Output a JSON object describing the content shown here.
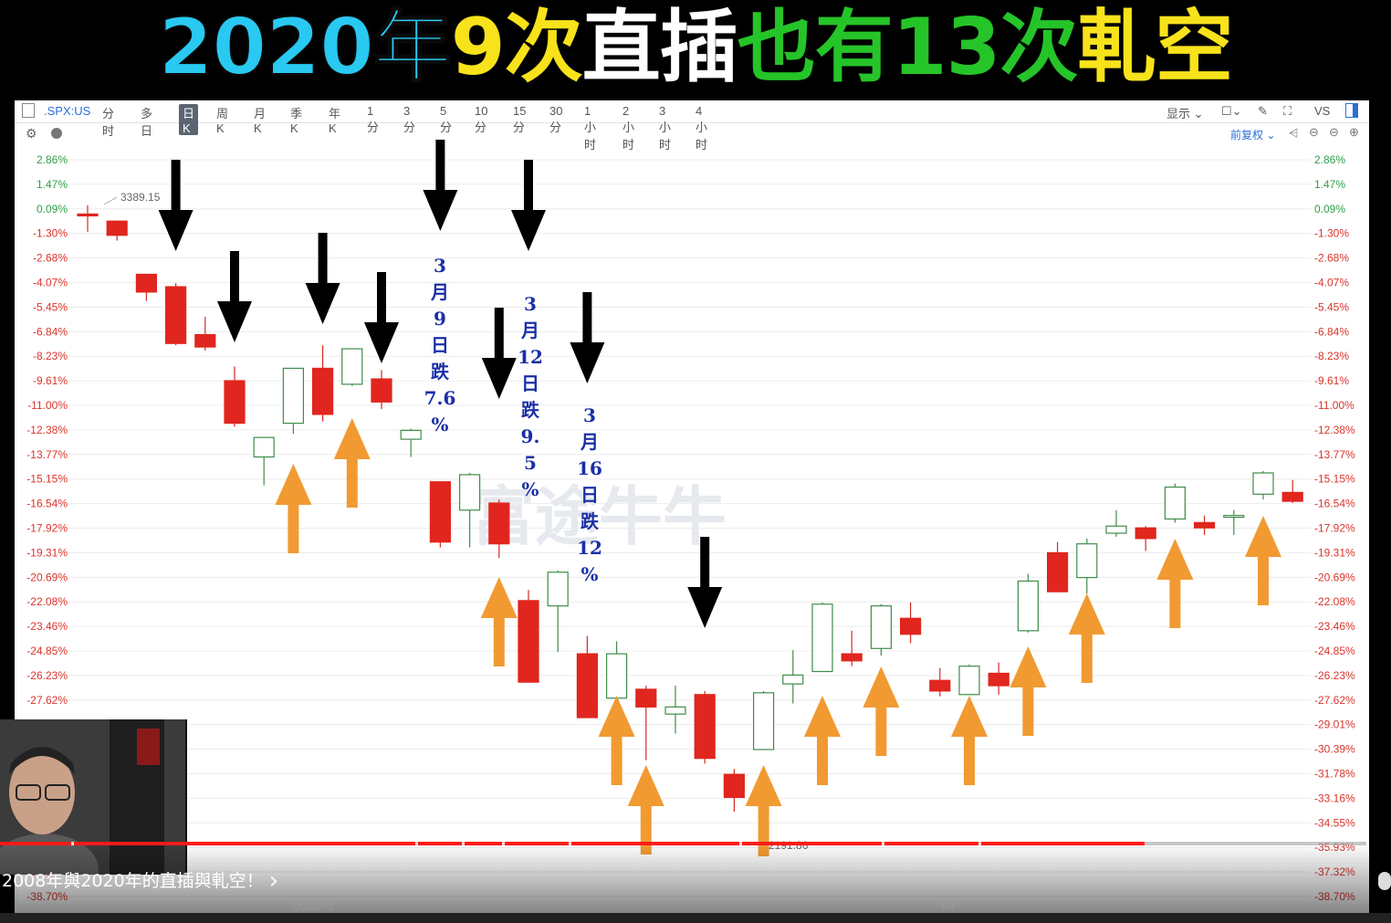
{
  "banner": {
    "part1": "2020年",
    "part2": "9次",
    "part3": "直插",
    "part4": "也有13次",
    "part5": "軋空",
    "colors": {
      "part1": "#29c9f2",
      "part2": "#f7e21b",
      "part3": "#ffffff",
      "part4": "#25c428",
      "part5": "#f7e21b"
    }
  },
  "toolbar": {
    "symbol": ".SPX:US",
    "periods": [
      "分时",
      "多日",
      "日K",
      "周K",
      "月K",
      "季K",
      "年K",
      "1分",
      "3分",
      "5分",
      "10分",
      "15分",
      "30分",
      "1小时",
      "2小时",
      "3小时",
      "4小时"
    ],
    "active_period": "日K",
    "display_label": "显示",
    "vs_label": "VS",
    "adjust_label": "前复权"
  },
  "watermark": "富途牛牛",
  "annotations": {
    "mar9": [
      "3",
      "月",
      "9",
      "日",
      "跌",
      "7.6",
      "%"
    ],
    "mar12": [
      "3",
      "月",
      "12",
      "日",
      "跌",
      "9.",
      "5",
      "%"
    ],
    "mar16": [
      "3",
      "月",
      "16",
      "日",
      "跌",
      "12",
      "%"
    ]
  },
  "chart_data": {
    "type": "candlestick",
    "title": "",
    "y_axis_labels": [
      "2.86%",
      "1.47%",
      "0.09%",
      "-1.30%",
      "-2.68%",
      "-4.07%",
      "-5.45%",
      "-6.84%",
      "-8.23%",
      "-9.61%",
      "-11.00%",
      "-12.38%",
      "-13.77%",
      "-15.15%",
      "-16.54%",
      "-17.92%",
      "-19.31%",
      "-20.69%",
      "-22.08%",
      "-23.46%",
      "-24.85%",
      "-26.23%",
      "-27.62%",
      "-29.01%",
      "-30.39%",
      "-31.78%",
      "-33.16%",
      "-34.55%",
      "-35.93%",
      "-37.32%",
      "-38.70%"
    ],
    "x_axis_labels": [
      "2020/03",
      "04"
    ],
    "high_label": "3389.15",
    "low_label": "2191.86",
    "ylim": [
      -38.7,
      2.86
    ],
    "candles_pct": [
      {
        "o": -0.2,
        "h": 0.3,
        "l": -1.2,
        "c": -0.2,
        "dir": "down"
      },
      {
        "o": -0.6,
        "h": -0.6,
        "l": -1.7,
        "c": -1.4,
        "dir": "down"
      },
      {
        "o": -3.6,
        "h": -3.6,
        "l": -5.1,
        "c": -4.6,
        "dir": "down"
      },
      {
        "o": -4.3,
        "h": -4.1,
        "l": -7.6,
        "c": -7.5,
        "dir": "down"
      },
      {
        "o": -7.0,
        "h": -6.0,
        "l": -7.9,
        "c": -7.7,
        "dir": "down"
      },
      {
        "o": -9.6,
        "h": -8.8,
        "l": -12.2,
        "c": -12.0,
        "dir": "down"
      },
      {
        "o": -13.9,
        "h": -12.8,
        "l": -15.5,
        "c": -12.8,
        "dir": "up"
      },
      {
        "o": -12.0,
        "h": -8.9,
        "l": -12.6,
        "c": -8.9,
        "dir": "up"
      },
      {
        "o": -8.9,
        "h": -7.6,
        "l": -11.9,
        "c": -11.5,
        "dir": "down"
      },
      {
        "o": -9.8,
        "h": -7.8,
        "l": -9.9,
        "c": -7.8,
        "dir": "up"
      },
      {
        "o": -9.5,
        "h": -9.0,
        "l": -11.2,
        "c": -10.8,
        "dir": "down"
      },
      {
        "o": -12.9,
        "h": -12.3,
        "l": -13.9,
        "c": -12.4,
        "dir": "up"
      },
      {
        "o": -15.3,
        "h": -15.3,
        "l": -19.0,
        "c": -18.7,
        "dir": "down"
      },
      {
        "o": -16.9,
        "h": -14.8,
        "l": -19.0,
        "c": -14.9,
        "dir": "up"
      },
      {
        "o": -16.5,
        "h": -16.3,
        "l": -19.6,
        "c": -18.8,
        "dir": "down"
      },
      {
        "o": -22.0,
        "h": -21.4,
        "l": -26.6,
        "c": -26.6,
        "dir": "down"
      },
      {
        "o": -22.3,
        "h": -20.3,
        "l": -24.9,
        "c": -20.4,
        "dir": "up"
      },
      {
        "o": -25.0,
        "h": -24.0,
        "l": -28.6,
        "c": -28.6,
        "dir": "down"
      },
      {
        "o": -27.5,
        "h": -24.3,
        "l": -29.0,
        "c": -25.0,
        "dir": "up"
      },
      {
        "o": -27.0,
        "h": -26.8,
        "l": -31.0,
        "c": -28.0,
        "dir": "down"
      },
      {
        "o": -28.0,
        "h": -26.8,
        "l": -29.5,
        "c": -28.4,
        "dir": "up"
      },
      {
        "o": -27.3,
        "h": -27.1,
        "l": -31.2,
        "c": -30.9,
        "dir": "down"
      },
      {
        "o": -31.8,
        "h": -31.5,
        "l": -33.9,
        "c": -33.1,
        "dir": "down"
      },
      {
        "o": -30.4,
        "h": -27.1,
        "l": -30.4,
        "c": -27.2,
        "dir": "up"
      },
      {
        "o": -26.7,
        "h": -24.8,
        "l": -27.8,
        "c": -26.2,
        "dir": "up"
      },
      {
        "o": -26.0,
        "h": -22.1,
        "l": -26.0,
        "c": -22.2,
        "dir": "up"
      },
      {
        "o": -25.0,
        "h": -23.7,
        "l": -25.7,
        "c": -25.4,
        "dir": "down"
      },
      {
        "o": -24.7,
        "h": -22.2,
        "l": -25.1,
        "c": -22.3,
        "dir": "up"
      },
      {
        "o": -23.0,
        "h": -22.1,
        "l": -24.4,
        "c": -23.9,
        "dir": "down"
      },
      {
        "o": -26.5,
        "h": -25.8,
        "l": -27.4,
        "c": -27.1,
        "dir": "down"
      },
      {
        "o": -27.3,
        "h": -25.6,
        "l": -27.3,
        "c": -25.7,
        "dir": "up"
      },
      {
        "o": -26.1,
        "h": -25.5,
        "l": -27.3,
        "c": -26.8,
        "dir": "down"
      },
      {
        "o": -23.7,
        "h": -20.5,
        "l": -23.8,
        "c": -20.9,
        "dir": "up"
      },
      {
        "o": -19.3,
        "h": -18.7,
        "l": -21.5,
        "c": -21.5,
        "dir": "down"
      },
      {
        "o": -20.7,
        "h": -18.5,
        "l": -21.6,
        "c": -18.8,
        "dir": "up"
      },
      {
        "o": -18.2,
        "h": -16.9,
        "l": -18.4,
        "c": -17.8,
        "dir": "up"
      },
      {
        "o": -17.9,
        "h": -17.8,
        "l": -19.2,
        "c": -18.5,
        "dir": "down"
      },
      {
        "o": -17.4,
        "h": -15.4,
        "l": -17.6,
        "c": -15.6,
        "dir": "up"
      },
      {
        "o": -17.6,
        "h": -17.2,
        "l": -18.3,
        "c": -17.9,
        "dir": "down"
      },
      {
        "o": -17.2,
        "h": -16.9,
        "l": -18.3,
        "c": -17.2,
        "dir": "up"
      },
      {
        "o": -16.0,
        "h": -14.7,
        "l": -16.3,
        "c": -14.8,
        "dir": "up"
      },
      {
        "o": -15.9,
        "h": -15.2,
        "l": -16.5,
        "c": -16.4,
        "dir": "down"
      }
    ],
    "down_arrow_candles": [
      3,
      5,
      8,
      10,
      12,
      14,
      15,
      17,
      21
    ],
    "up_arrow_candles": [
      7,
      9,
      14,
      18,
      19,
      23,
      25,
      27,
      30,
      32,
      34,
      37,
      40
    ]
  },
  "video": {
    "caption": "2008年與2020年的直插與軋空！",
    "chevron": "›",
    "progress_fraction": 0.838,
    "buffered_fraction": 0.9
  }
}
